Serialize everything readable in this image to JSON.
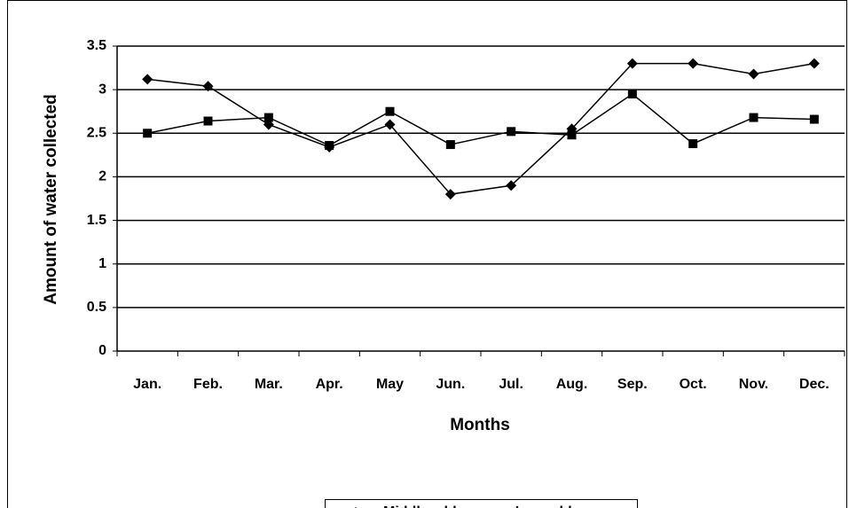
{
  "chart_data": {
    "type": "line",
    "x_label": "Months",
    "y_label": "Amount of water collected",
    "categories": [
      "Jan.",
      "Feb.",
      "Mar.",
      "Apr.",
      "May",
      "Jun.",
      "Jul.",
      "Aug.",
      "Sep.",
      "Oct.",
      "Nov.",
      "Dec."
    ],
    "series": [
      {
        "name": "Middleveld",
        "color": "#000000",
        "marker": "diamond",
        "values": [
          3.12,
          3.04,
          2.6,
          2.34,
          2.6,
          1.8,
          1.9,
          2.55,
          3.3,
          3.3,
          3.18,
          3.3
        ]
      },
      {
        "name": "Lowveld",
        "color": "#000000",
        "marker": "square",
        "values": [
          2.5,
          2.64,
          2.68,
          2.36,
          2.75,
          2.37,
          2.52,
          2.48,
          2.95,
          2.38,
          2.68,
          2.66
        ]
      }
    ],
    "ylim": [
      0,
      3.5
    ],
    "yticks": [
      0,
      0.5,
      1,
      1.5,
      2,
      2.5,
      3,
      3.5
    ],
    "grid": true,
    "legend": "bottom"
  }
}
